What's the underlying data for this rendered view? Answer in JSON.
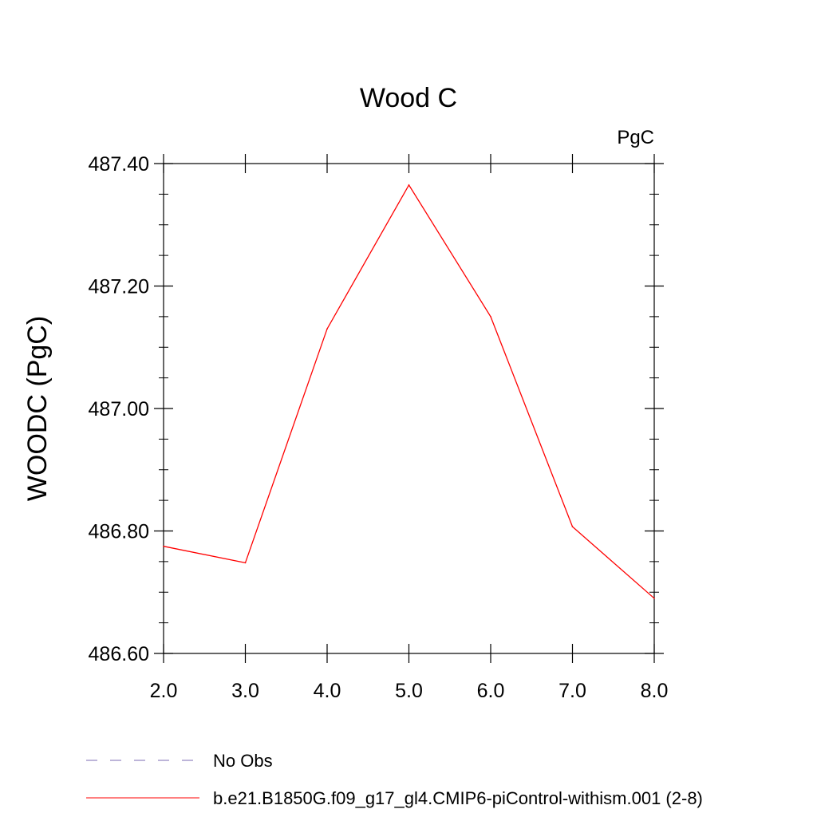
{
  "chart_data": {
    "type": "line",
    "title": "Wood C",
    "units_label": "PgC",
    "ylabel": "WOODC  (PgC)",
    "xlabel": "",
    "xlim": [
      2.0,
      8.0
    ],
    "ylim": [
      486.6,
      487.4
    ],
    "x_ticks": [
      "2.0",
      "3.0",
      "4.0",
      "5.0",
      "6.0",
      "7.0",
      "8.0"
    ],
    "y_ticks": [
      "486.60",
      "486.80",
      "487.00",
      "487.20",
      "487.40"
    ],
    "grid": false,
    "legend_position": "bottom",
    "x": [
      2,
      3,
      4,
      5,
      6,
      7,
      8
    ],
    "series": [
      {
        "name": "b.e21.B1850G.f09_g17_gl4.CMIP6-piControl-withism.001 (2-8)",
        "color": "#ff0000",
        "style": "solid",
        "values": [
          486.775,
          486.748,
          487.13,
          487.365,
          487.15,
          486.807,
          486.69
        ]
      }
    ],
    "legend": [
      {
        "label": "No Obs",
        "color": "#7b6bb3",
        "style": "dashed"
      },
      {
        "label": "b.e21.B1850G.f09_g17_gl4.CMIP6-piControl-withism.001 (2-8)",
        "color": "#ff0000",
        "style": "solid"
      }
    ]
  }
}
